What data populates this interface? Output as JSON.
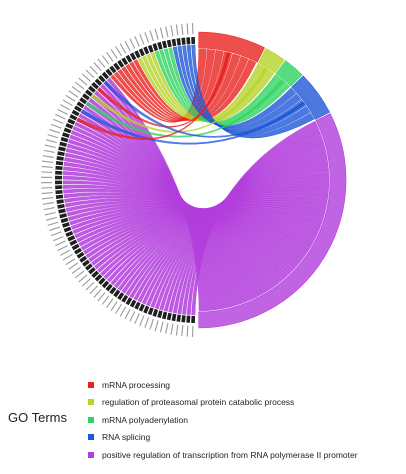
{
  "legend": {
    "title": "GO Terms",
    "items": [
      {
        "label": "mRNA processing",
        "color": "#e8231f"
      },
      {
        "label": "regulation of proteasomal protein catabolic process",
        "color": "#b5d328"
      },
      {
        "label": "mRNA polyadenylation",
        "color": "#2fd35f"
      },
      {
        "label": "RNA splicing",
        "color": "#1f57d8"
      },
      {
        "label": "positive regulation of transcription from RNA polymerase II promoter",
        "color": "#b23ddc"
      }
    ]
  },
  "chart_data": {
    "type": "chord",
    "terms": [
      {
        "name": "mRNA processing",
        "color": "#e8231f",
        "share": 0.075
      },
      {
        "name": "regulation of proteasomal protein catabolic process",
        "color": "#b5d328",
        "share": 0.025
      },
      {
        "name": "mRNA polyadenylation",
        "color": "#2fd35f",
        "share": 0.025
      },
      {
        "name": "RNA splicing",
        "color": "#1f57d8",
        "share": 0.05
      },
      {
        "name": "positive regulation of transcription from RNA polymerase II promoter",
        "color": "#b23ddc",
        "share": 0.325
      }
    ],
    "gene_count": 90
  }
}
